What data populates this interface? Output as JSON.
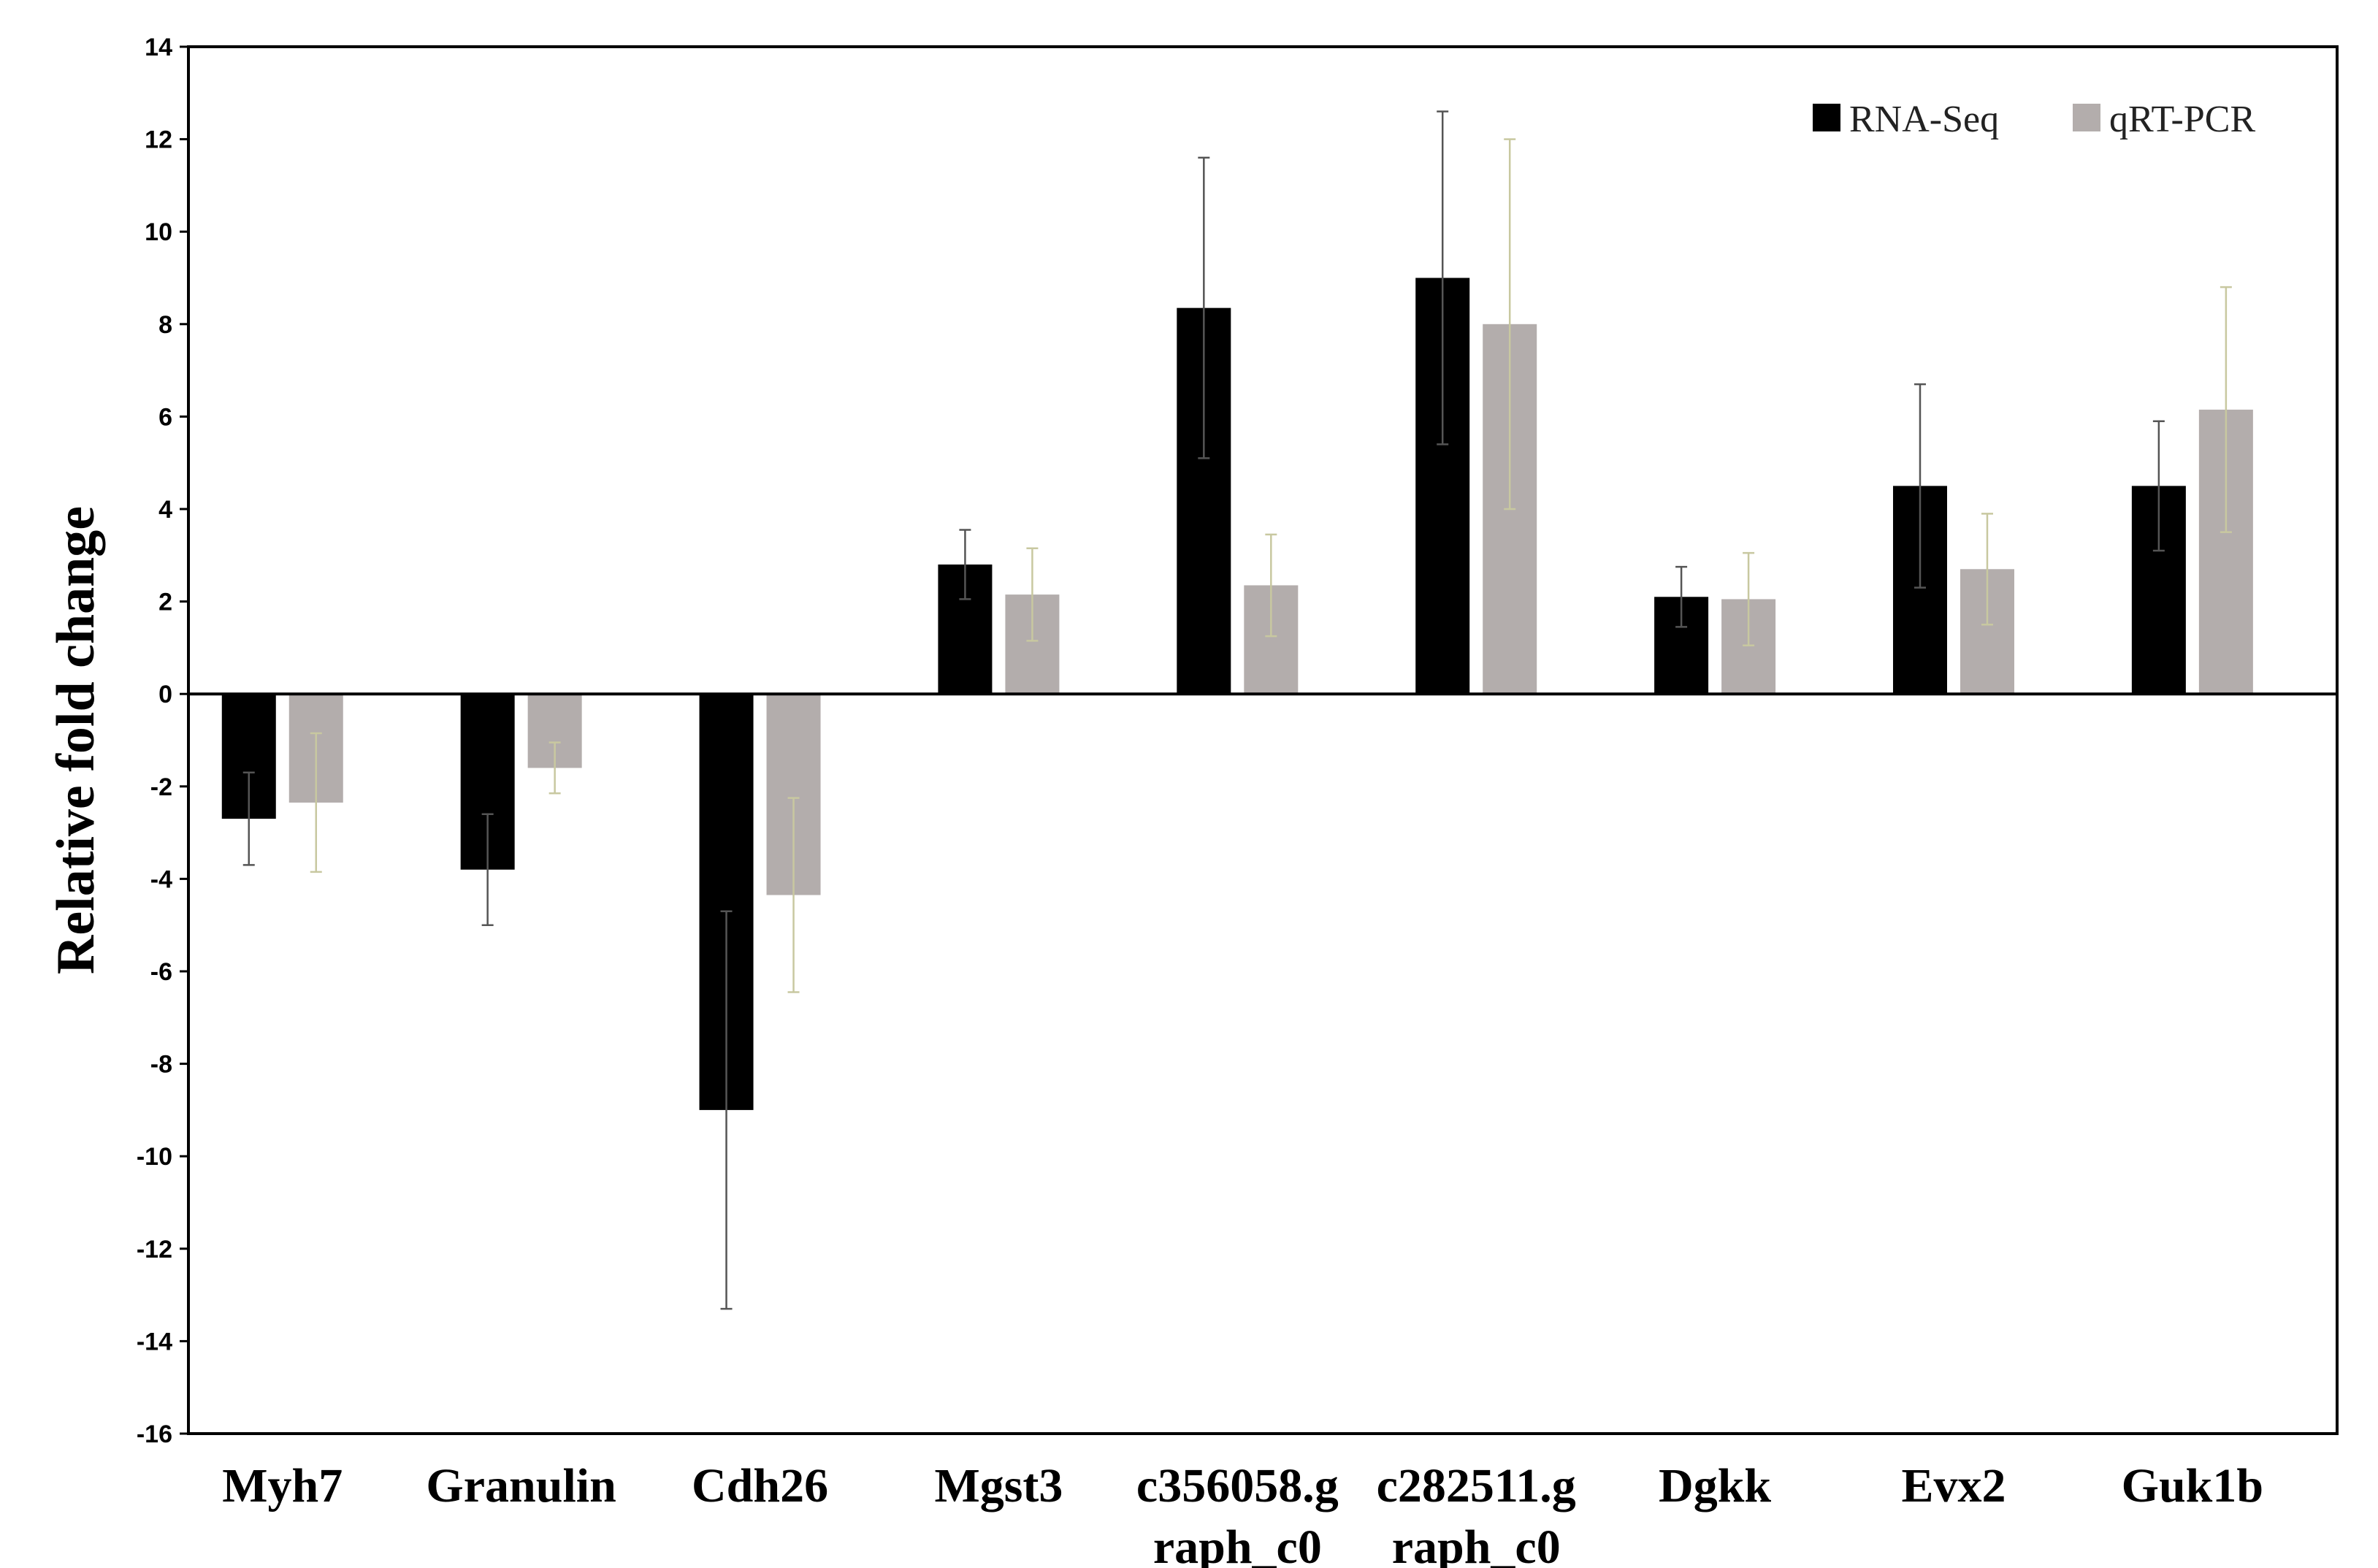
{
  "chart_data": {
    "type": "bar",
    "title": "",
    "xlabel": "",
    "ylabel": "Relative fold change",
    "ylim": [
      -16,
      14
    ],
    "yticks": [
      14,
      12,
      10,
      8,
      6,
      4,
      2,
      0,
      -2,
      -4,
      -6,
      -8,
      -10,
      -12,
      -14,
      -16
    ],
    "ytick_labels": [
      "14",
      "12",
      "10",
      "8",
      "6",
      "4",
      "2",
      "0",
      "-2",
      "-4",
      "-6",
      "-8",
      "-10",
      "-12",
      "-14",
      "-16"
    ],
    "categories": [
      [
        "Myh7"
      ],
      [
        "Granulin"
      ],
      [
        "Cdh26"
      ],
      [
        "Mgst3"
      ],
      [
        "c356058.g",
        "raph_c0"
      ],
      [
        "c282511.g",
        "raph_c0"
      ],
      [
        "Dgkk"
      ],
      [
        "Evx2"
      ],
      [
        "Guk1b"
      ]
    ],
    "series": [
      {
        "name": "RNA-Seq",
        "color": "#000000",
        "error_color": "#555555",
        "values": [
          -2.7,
          -3.8,
          -9.0,
          2.8,
          8.35,
          9.0,
          2.1,
          4.5,
          4.5
        ],
        "errors": [
          1.0,
          1.2,
          4.3,
          0.75,
          3.25,
          3.6,
          0.65,
          2.2,
          1.4
        ]
      },
      {
        "name": "qRT-PCR",
        "color": "#b3adac",
        "error_color": "#c8c8a0",
        "values": [
          -2.35,
          -1.6,
          -4.35,
          2.15,
          2.35,
          8.0,
          2.05,
          2.7,
          6.15
        ],
        "errors": [
          1.5,
          0.55,
          2.1,
          1.0,
          1.1,
          4.0,
          1.0,
          1.2,
          2.65
        ]
      }
    ],
    "legend": {
      "position": "top-right"
    },
    "grid": false
  }
}
